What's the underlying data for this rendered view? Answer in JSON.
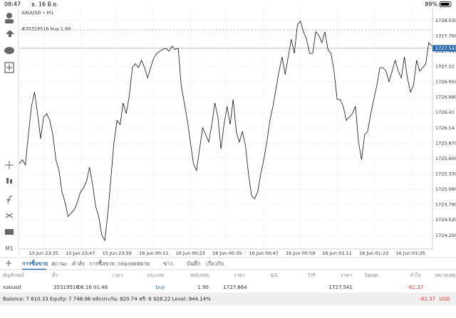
{
  "status_bar": {
    "time": "08:47",
    "date": "อ. 16 มิ.ย.",
    "battery": "89%"
  },
  "toolbar": {
    "timeframe": "M1"
  },
  "chart": {
    "type": "line",
    "symbol": "XAUUSD • M1",
    "color": "#111111",
    "grid": true,
    "ylim": [
      1724.01,
      1728.24
    ],
    "yticks": [
      {
        "value": 1728.03,
        "label": "1728.030"
      },
      {
        "value": 1727.76,
        "label": "1727.760"
      },
      {
        "value": 1727.49,
        "label": "1727.490"
      },
      1727.22,
      {
        "value": 1726.95,
        "label": "1726.950"
      },
      {
        "value": 1726.68,
        "label": "1726.680"
      },
      1726.41,
      1726.14,
      {
        "value": 1725.87,
        "label": "1725.870"
      },
      {
        "value": 1725.6,
        "label": "1725.600"
      },
      {
        "value": 1725.33,
        "label": "1725.330"
      },
      {
        "value": 1725.06,
        "label": "1725.060"
      },
      {
        "value": 1724.79,
        "label": "1724.790"
      },
      {
        "value": 1724.52,
        "label": "1724.520"
      },
      {
        "value": 1724.25,
        "label": "1724.250"
      }
    ],
    "current_price": 1727.541,
    "order_line": {
      "label": "#35319516 buy 1.90",
      "value": 1727.864
    },
    "categories": [
      null,
      null,
      null,
      null,
      null,
      null,
      null,
      null,
      "15 Jun 23:35",
      null,
      null,
      null,
      null,
      null,
      null,
      null,
      null,
      null,
      null,
      null,
      "15 Jun 23:47",
      null,
      null,
      null,
      null,
      null,
      null,
      null,
      null,
      null,
      null,
      null,
      "15 Jun 23:59",
      null,
      null,
      null,
      null,
      null,
      null,
      null,
      null,
      null,
      null,
      null,
      "16 Jun 00:11",
      null,
      null,
      null,
      null,
      null,
      null,
      null,
      null,
      null,
      null,
      null,
      "16 Jun 00:23",
      null,
      null,
      null,
      null,
      null,
      null,
      null,
      null,
      null,
      null,
      null,
      "16 Jun 00:35",
      null,
      null,
      null,
      null,
      null,
      null,
      null,
      null,
      null,
      null,
      null,
      "16 Jun 00:47",
      null,
      null,
      null,
      null,
      null,
      null,
      null,
      null,
      null,
      null,
      null,
      "16 Jun 00:59",
      null,
      null,
      null,
      null,
      null,
      null,
      null,
      null,
      null,
      null,
      null,
      "16 Jun 01:11",
      null,
      null,
      null,
      null,
      null,
      null,
      null,
      null,
      null,
      null,
      null,
      "16 Jun 01:23",
      null,
      null,
      null,
      null,
      null,
      null,
      null,
      null,
      null,
      null,
      null,
      "16 Jun 01:35",
      null,
      null,
      null,
      null,
      null,
      null,
      null
    ],
    "values": [
      1725.51,
      1725.58,
      1725.49,
      1726.02,
      1726.52,
      1726.77,
      1726.39,
      1725.95,
      1726.33,
      1726.39,
      1726.27,
      1726.02,
      1725.58,
      1725.39,
      1725.01,
      1724.83,
      1724.58,
      1724.64,
      1724.7,
      1724.83,
      1725.01,
      1725.08,
      1725.2,
      1725.45,
      1725.14,
      1724.76,
      1724.58,
      1724.26,
      1724.16,
      1724.64,
      1725.26,
      1725.89,
      1726.27,
      1726.2,
      1726.58,
      1726.39,
      1726.7,
      1727.2,
      1727.27,
      1727.2,
      1727.33,
      1727.2,
      1727.02,
      1727.2,
      1727.37,
      1727.45,
      1727.49,
      1727.52,
      1727.54,
      1727.49,
      1727.58,
      1727.52,
      1727.54,
      1726.89,
      1726.58,
      1726.27,
      1725.89,
      1725.51,
      1725.39,
      1725.77,
      1726.14,
      1726.02,
      1725.89,
      1726.2,
      1726.58,
      1726.33,
      1725.77,
      1726.2,
      1726.52,
      1726.2,
      1726.64,
      1726.08,
      1725.89,
      1726.08,
      1725.83,
      1725.33,
      1724.95,
      1724.89,
      1725.01,
      1725.33,
      1725.58,
      1725.89,
      1726.27,
      1726.52,
      1726.83,
      1727.14,
      1727.39,
      1727.08,
      1727.39,
      1727.7,
      1727.45,
      1727.95,
      1728.02,
      1727.83,
      1727.7,
      1727.45,
      1727.45,
      1727.83,
      1727.77,
      1727.64,
      1727.83,
      1727.52,
      1727.45,
      1727.14,
      1726.64,
      1726.64,
      1726.52,
      1726.27,
      1726.33,
      1726.39,
      1726.52,
      1725.89,
      1725.58,
      1726.02,
      1726.08,
      1726.39,
      1726.64,
      1726.89,
      1727.2,
      1727.2,
      1727.14,
      1726.95,
      1727.14,
      1727.33,
      1727.14,
      1727.02,
      1727.39,
      1727.02,
      1726.77,
      1726.89,
      1727.33,
      1727.14,
      1727.2,
      1727.27,
      1727.64,
      1727.58
    ]
  },
  "tabs": [
    "การซื้อขาย",
    "สถานะ",
    "คำสั่ง",
    "การซื้อขาย",
    "กล่องจดหมาย",
    "ข่าว",
    "บันทึก",
    "เกี่ยวกับ"
  ],
  "table": {
    "header": [
      "สัญลักษณ์",
      "ตั๋ว",
      "เวลา",
      "ประเภท",
      "Volume",
      "ราคา",
      "S/L",
      "T/P",
      "ราคา",
      "Swap",
      "กำไร",
      "หมายเหตุ"
    ],
    "rows": [
      [
        "xauusd",
        "35319516",
        "06.16 01:46",
        "buy",
        "1.90",
        "1727.864",
        null,
        null,
        "1727.541",
        null,
        "-61.37",
        null
      ]
    ]
  },
  "summary": {
    "text": "Balance: 7 810.33 Equity: 7 748.96 หลักประกัน: 820.74 ฟรี: 6 928.22 Level: 944.14%",
    "profit": "-61.37",
    "currency": "USD"
  }
}
